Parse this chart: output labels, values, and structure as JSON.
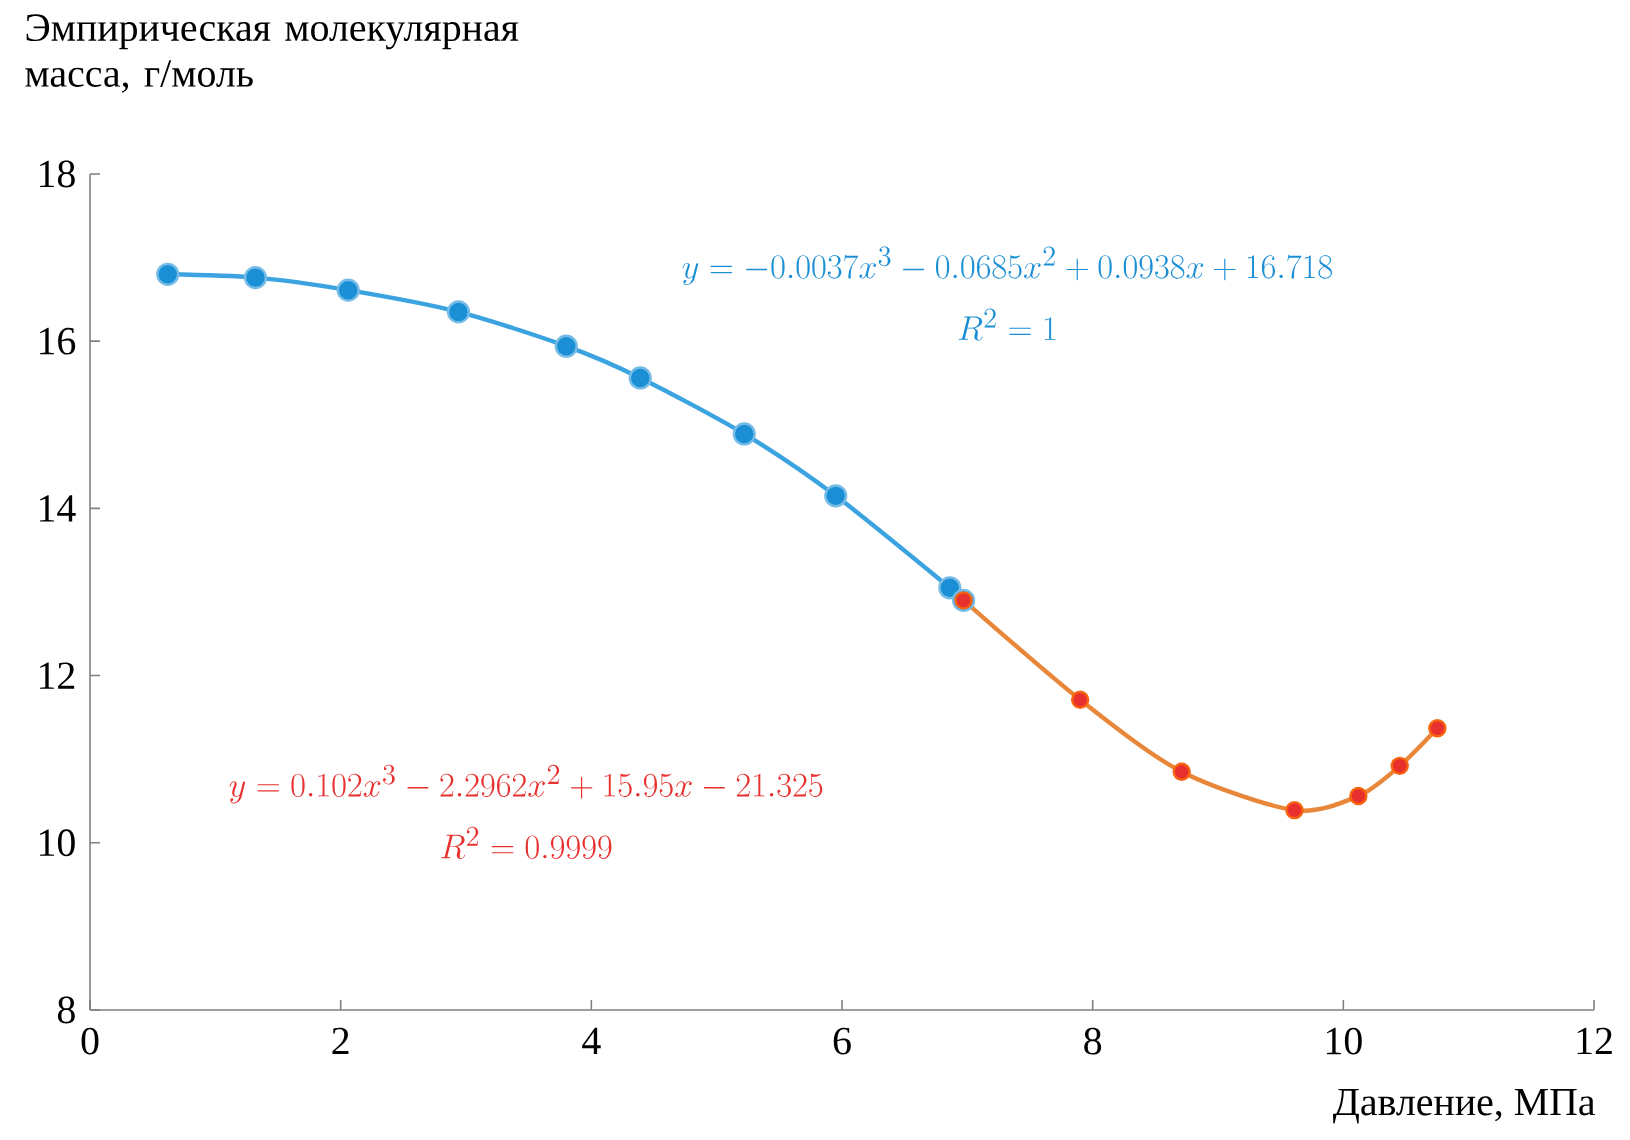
{
  "chart_data": {
    "type": "scatter",
    "ylabel": "Эмпирическая молекулярная масса, г/моль",
    "xlabel": "Давление, МПа",
    "xlim": [
      0,
      12
    ],
    "xticks": [
      0,
      2,
      4,
      6,
      8,
      10,
      12
    ],
    "ylim": [
      8,
      18
    ],
    "yticks": [
      8,
      10,
      12,
      14,
      16,
      18
    ],
    "grid": false,
    "series": [
      {
        "type": "line",
        "color": "#3ba3e0",
        "x": [
          0.62,
          1.32,
          2.06,
          2.94,
          3.8,
          4.39,
          5.22,
          5.95,
          6.86,
          6.97
        ],
        "values": [
          16.8,
          16.76,
          16.61,
          16.35,
          15.94,
          15.56,
          14.89,
          14.15,
          13.05,
          12.9
        ]
      },
      {
        "color": "#1b8fd6",
        "x": [
          0.62,
          1.32,
          2.06,
          2.94,
          3.8,
          4.39,
          5.22,
          5.95,
          6.86,
          6.97
        ],
        "values": [
          16.8,
          16.76,
          16.61,
          16.35,
          15.94,
          15.56,
          14.89,
          14.15,
          13.05,
          12.9
        ]
      },
      {
        "type": "line",
        "color": "#e8873a",
        "x": [
          6.97,
          7.9,
          8.71,
          9.61,
          10.12,
          10.45,
          10.75
        ],
        "values": [
          12.9,
          11.71,
          10.85,
          10.39,
          10.56,
          10.92,
          11.37
        ]
      },
      {
        "color": "#e8302e",
        "x": [
          6.97,
          7.9,
          8.71,
          9.61,
          10.12,
          10.45,
          10.75
        ],
        "values": [
          12.9,
          11.71,
          10.85,
          10.39,
          10.56,
          10.92,
          11.37
        ]
      }
    ],
    "annotations": [
      "y = -0.0037x^{3} - 0.0685x^{2} + 0.0938x + 16.718",
      "R^{2} = 1",
      "y = 0.102x^{3} - 2.2962x^{2} + 15.95x - 21.325",
      "R^{2} = 0.9999"
    ]
  }
}
